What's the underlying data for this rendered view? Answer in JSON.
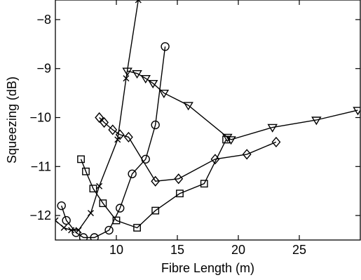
{
  "chart_data": {
    "type": "line",
    "title": "",
    "xlabel": "Fibre Length (m)",
    "ylabel": "Squeezing (dB)",
    "xlim": [
      5,
      30
    ],
    "ylim": [
      -12.5,
      -7.6
    ],
    "xticks": [
      10,
      15,
      20,
      25
    ],
    "yticks": [
      -12,
      -11,
      -10,
      -9,
      -8
    ],
    "grid": false,
    "legend": "none",
    "color": "#000000",
    "series": [
      {
        "marker": "x",
        "x": [
          5.0,
          5.7,
          6.3,
          6.9,
          7.9,
          8.6,
          10.1,
          10.8,
          11.8
        ],
        "y": [
          -12.1,
          -12.25,
          -12.3,
          -12.3,
          -11.95,
          -11.4,
          -10.45,
          -9.2,
          -7.6
        ]
      },
      {
        "marker": "circle",
        "x": [
          5.5,
          5.9,
          6.7,
          7.3,
          8.2,
          9.4,
          10.3,
          11.3,
          12.4,
          13.2,
          14.0
        ],
        "y": [
          -11.8,
          -12.1,
          -12.35,
          -12.45,
          -12.45,
          -12.3,
          -11.85,
          -11.15,
          -10.85,
          -10.15,
          -8.55
        ]
      },
      {
        "marker": "square",
        "x": [
          7.1,
          7.5,
          8.1,
          8.9,
          10.0,
          11.7,
          13.2,
          15.2,
          17.2,
          19.0
        ],
        "y": [
          -10.85,
          -11.1,
          -11.45,
          -11.75,
          -12.1,
          -12.25,
          -11.9,
          -11.55,
          -11.35,
          -10.45
        ]
      },
      {
        "marker": "diamond",
        "x": [
          8.6,
          9.0,
          9.7,
          10.3,
          11.0,
          13.2,
          15.1,
          18.1,
          20.7,
          23.1
        ],
        "y": [
          -10.0,
          -10.1,
          -10.25,
          -10.35,
          -10.4,
          -11.3,
          -11.25,
          -10.85,
          -10.75,
          -10.5
        ]
      },
      {
        "marker": "triangle-down",
        "x": [
          10.9,
          11.7,
          12.4,
          13.0,
          13.9,
          15.9,
          19.1,
          19.4,
          22.8,
          26.4,
          29.8
        ],
        "y": [
          -9.05,
          -9.1,
          -9.2,
          -9.3,
          -9.5,
          -9.75,
          -10.4,
          -10.45,
          -10.2,
          -10.05,
          -9.85
        ]
      }
    ]
  }
}
